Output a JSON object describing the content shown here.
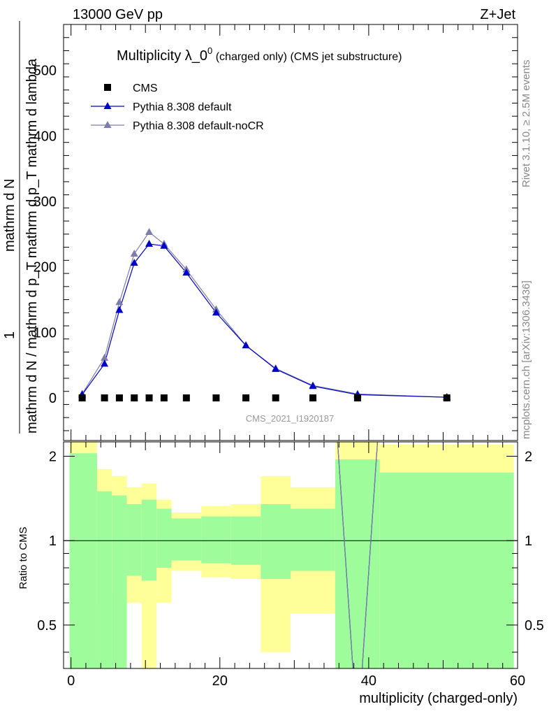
{
  "header": {
    "left": "13000 GeV pp",
    "right": "Z+Jet"
  },
  "side": {
    "rivet": "Rivet 3.1.10, ≥ 2.5M events",
    "mcplots": "mcplots.cern.ch [arXiv:1306.3436]"
  },
  "colors": {
    "band_inner": "#9efd9a",
    "band_outer": "#ffff99",
    "pythia_default": "#0000cc",
    "pythia_nocr": "#7d7dad",
    "data": "#000000"
  },
  "chart_data": [
    {
      "type": "line",
      "title": "Multiplicity λ_0^0 (charged only) (CMS jet substructure)",
      "title_main": "Multiplicity λ_0",
      "title_sup": "0",
      "title_tail": " (charged only) (CMS jet substructure)",
      "ylabel": "1 / mathrm d N / mathrm d p_T mathrm d^2N / mathrm d p_T mathrm d lambda",
      "ylim": [
        -65,
        570
      ],
      "yticks": [
        0,
        100,
        200,
        300,
        400,
        500
      ],
      "xlim": [
        -1,
        60
      ],
      "watermark": "CMS_2021_I1920187",
      "legend_position": "top-left",
      "x": [
        1.5,
        4.5,
        6.5,
        8.5,
        10.5,
        12.5,
        15.5,
        19.5,
        23.5,
        27.5,
        32.5,
        38.5,
        50.5
      ],
      "series": [
        {
          "name": "CMS",
          "marker": "square",
          "values": [
            0,
            0,
            0,
            0,
            0,
            0,
            0,
            0,
            0,
            0,
            0,
            0,
            0
          ]
        },
        {
          "name": "Pythia 8.308 default",
          "marker": "triangle",
          "values": [
            5,
            52,
            134,
            206,
            235,
            232,
            191,
            130,
            80,
            44,
            18,
            5,
            1
          ]
        },
        {
          "name": "Pythia 8.308 default-noCR",
          "marker": "triangle",
          "values": [
            6,
            61,
            146,
            220,
            253,
            235,
            196,
            135,
            80,
            45,
            19,
            6,
            1
          ]
        }
      ]
    },
    {
      "type": "line",
      "title": "",
      "ylabel": "Ratio to CMS",
      "xlabel": "multiplicity (charged-only)",
      "ylim": [
        0.35,
        2.25
      ],
      "yticks": [
        0.5,
        1,
        2
      ],
      "yscale": "log",
      "xlim": [
        -1,
        60
      ],
      "xticks": [
        0,
        20,
        40,
        60
      ],
      "bands": [
        {
          "x0": -0.2,
          "x1": 3.5,
          "inner": [
            0.1,
            2.05
          ],
          "outer": [
            0.1,
            2.6
          ]
        },
        {
          "x0": 3.5,
          "x1": 5.5,
          "inner": [
            0.1,
            1.5
          ],
          "outer": [
            0.6,
            1.8
          ]
        },
        {
          "x0": 5.5,
          "x1": 7.5,
          "inner": [
            0.1,
            1.45
          ],
          "outer": [
            0.65,
            1.7
          ]
        },
        {
          "x0": 7.5,
          "x1": 9.5,
          "inner": [
            0.75,
            1.35
          ],
          "outer": [
            0.6,
            1.55
          ]
        },
        {
          "x0": 9.5,
          "x1": 11.5,
          "inner": [
            0.72,
            1.4
          ],
          "outer": [
            0.1,
            1.6
          ]
        },
        {
          "x0": 11.5,
          "x1": 13.5,
          "inner": [
            0.8,
            1.3
          ],
          "outer": [
            0.6,
            1.4
          ]
        },
        {
          "x0": 13.5,
          "x1": 17.5,
          "inner": [
            0.85,
            1.2
          ],
          "outer": [
            0.78,
            1.26
          ]
        },
        {
          "x0": 17.5,
          "x1": 21.5,
          "inner": [
            0.83,
            1.22
          ],
          "outer": [
            0.74,
            1.33
          ]
        },
        {
          "x0": 21.5,
          "x1": 25.5,
          "inner": [
            0.82,
            1.22
          ],
          "outer": [
            0.73,
            1.35
          ]
        },
        {
          "x0": 25.5,
          "x1": 29.5,
          "inner": [
            0.73,
            1.35
          ],
          "outer": [
            0.4,
            1.7
          ]
        },
        {
          "x0": 29.5,
          "x1": 35.5,
          "inner": [
            0.78,
            1.3
          ],
          "outer": [
            0.55,
            1.55
          ]
        },
        {
          "x0": 35.5,
          "x1": 41.5,
          "inner": [
            0.1,
            1.95
          ],
          "outer": [
            0.1,
            2.6
          ]
        },
        {
          "x0": 41.5,
          "x1": 59.5,
          "inner": [
            0.1,
            1.75
          ],
          "outer": [
            0.1,
            2.2
          ]
        }
      ],
      "series": [
        {
          "name": "Pythia 8.308 default / CMS",
          "line_x": [
            35.5,
            38.5,
            41.5
          ],
          "values": [
            3.0,
            0.2,
            3.0
          ]
        },
        {
          "name": "Pythia 8.308 default-noCR / CMS",
          "line_x": [
            35.5,
            38.5,
            41.5
          ],
          "values": [
            3.0,
            0.2,
            3.0
          ]
        }
      ]
    }
  ]
}
